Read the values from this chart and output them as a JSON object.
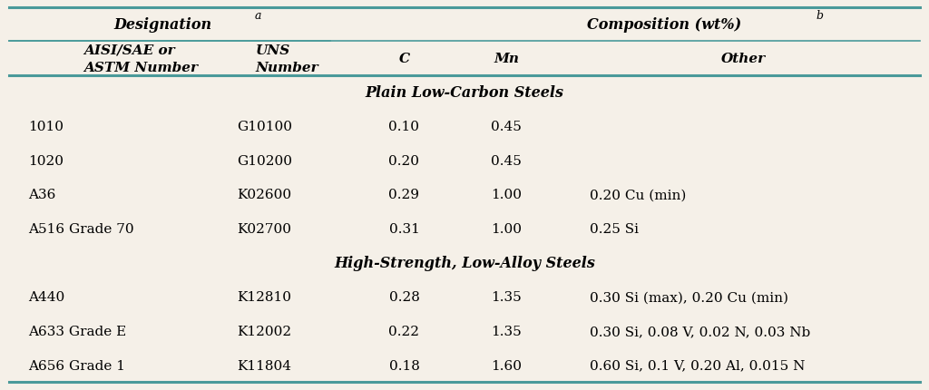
{
  "bg_color": "#f5f0e8",
  "teal_color": "#4a9a9a",
  "rows_section1": [
    [
      "1010",
      "G10100",
      "0.10",
      "0.45",
      ""
    ],
    [
      "1020",
      "G10200",
      "0.20",
      "0.45",
      ""
    ],
    [
      "A36",
      "K02600",
      "0.29",
      "1.00",
      "0.20 Cu (min)"
    ],
    [
      "A516 Grade 70",
      "K02700",
      "0.31",
      "1.00",
      "0.25 Si"
    ]
  ],
  "rows_section2": [
    [
      "A440",
      "K12810",
      "0.28",
      "1.35",
      "0.30 Si (max), 0.20 Cu (min)"
    ],
    [
      "A633 Grade E",
      "K12002",
      "0.22",
      "1.35",
      "0.30 Si, 0.08 V, 0.02 N, 0.03 Nb"
    ],
    [
      "A656 Grade 1",
      "K11804",
      "0.18",
      "1.60",
      "0.60 Si, 0.1 V, 0.20 Al, 0.015 N"
    ]
  ],
  "font_size": 11,
  "header_font_size": 11,
  "section_font_size": 11.5,
  "designation_text": "Designation",
  "designation_sup": "a",
  "composition_text": "Composition (wt%)",
  "composition_sup": "b",
  "section1_label": "Plain Low-Carbon Steels",
  "section2_label": "High-Strength, Low-Alloy Steels",
  "col_header_1a": "AISI/SAE or",
  "col_header_1b": "ASTM Number",
  "col_header_2a": "UNS",
  "col_header_2b": "Number",
  "col_header_c": "C",
  "col_header_mn": "Mn",
  "col_header_other": "Other"
}
